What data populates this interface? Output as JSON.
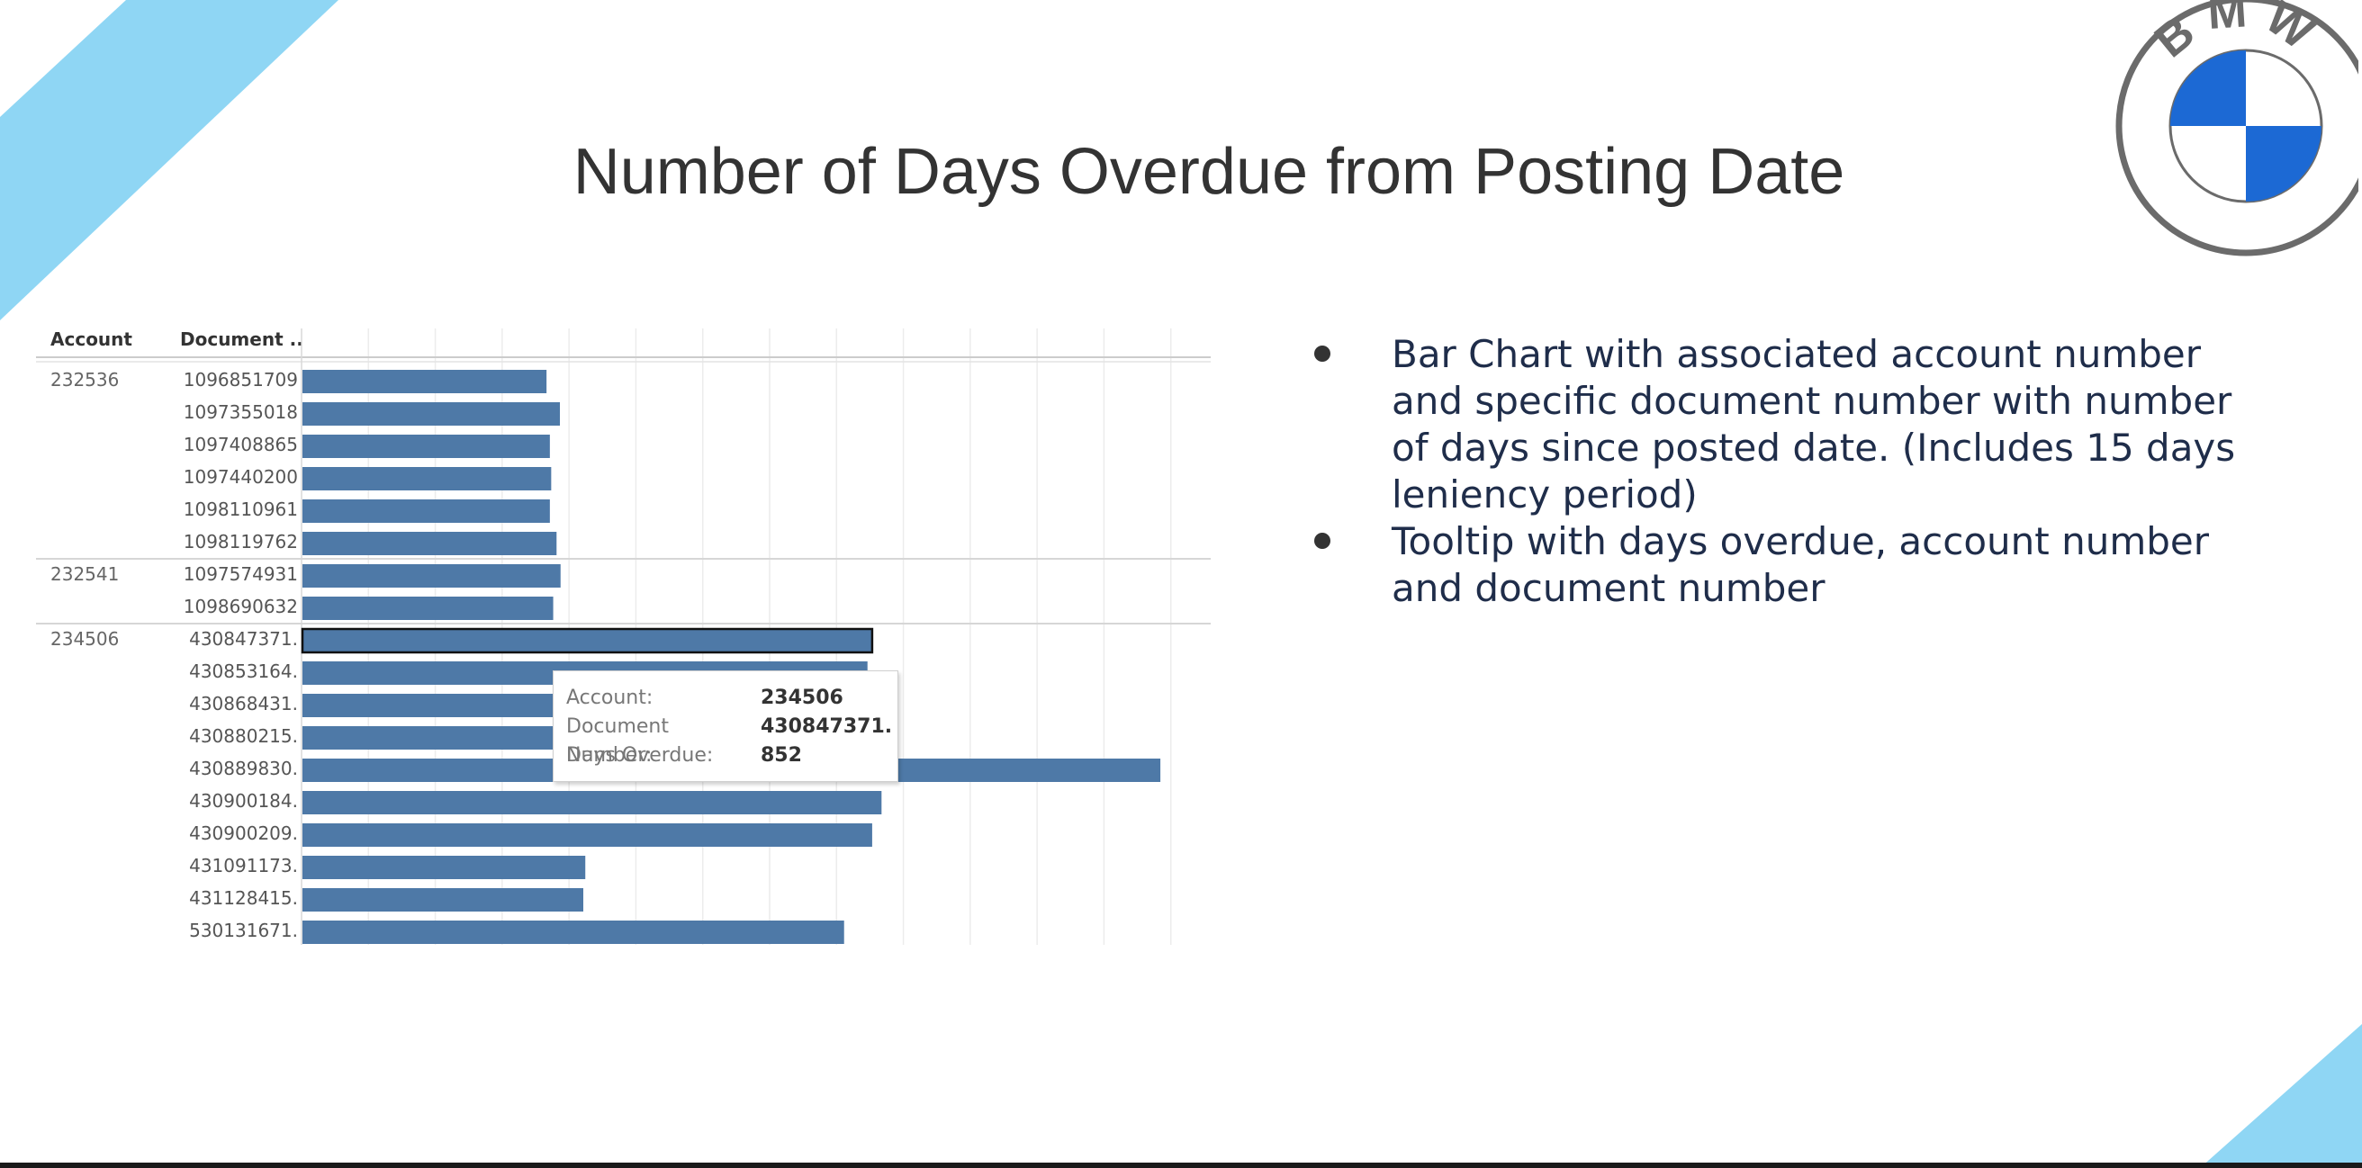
{
  "slide": {
    "title": "Number of Days Overdue from Posting Date",
    "bullets": [
      "Bar Chart with associated account number and specific document number with number of days since posted date. (Includes 15 days leniency period)",
      "Tooltip with days overdue, account number and document number"
    ],
    "colors": {
      "accent": "#8fd6f4",
      "bar": "#4e79a7",
      "logo_blue": "#1c69d4",
      "text": "#1f2d4a"
    },
    "logo_icon": "bmw-logo"
  },
  "chart_data": {
    "type": "bar",
    "orientation": "horizontal",
    "row_headers": [
      "Account",
      "Document .."
    ],
    "groups": [
      {
        "account": "232536",
        "documents": [
          "1096851709",
          "1097355018",
          "1097408865",
          "1097440200",
          "1098110961",
          "1098119762"
        ],
        "values": [
          365,
          385,
          370,
          372,
          370,
          380
        ]
      },
      {
        "account": "232541",
        "documents": [
          "1097574931",
          "1098690632"
        ],
        "values": [
          386,
          375
        ]
      },
      {
        "account": "234506",
        "documents": [
          "430847371.",
          "430853164.",
          "430868431.",
          "430880215.",
          "430889830.",
          "430900184.",
          "430900209.",
          "431091173.",
          "431128415.",
          "530131671."
        ],
        "values": [
          852,
          845,
          840,
          838,
          1283,
          866,
          852,
          423,
          420,
          810
        ]
      }
    ],
    "xlim": [
      0,
      1400
    ],
    "grid": true,
    "highlighted": {
      "account": "234506",
      "document": "430847371."
    }
  },
  "tooltip": {
    "account_label": "Account:",
    "account_value": "234506",
    "document_label": "Document Number:",
    "document_value": "430847371.",
    "days_label": "Days Overdue:",
    "days_value": "852"
  }
}
